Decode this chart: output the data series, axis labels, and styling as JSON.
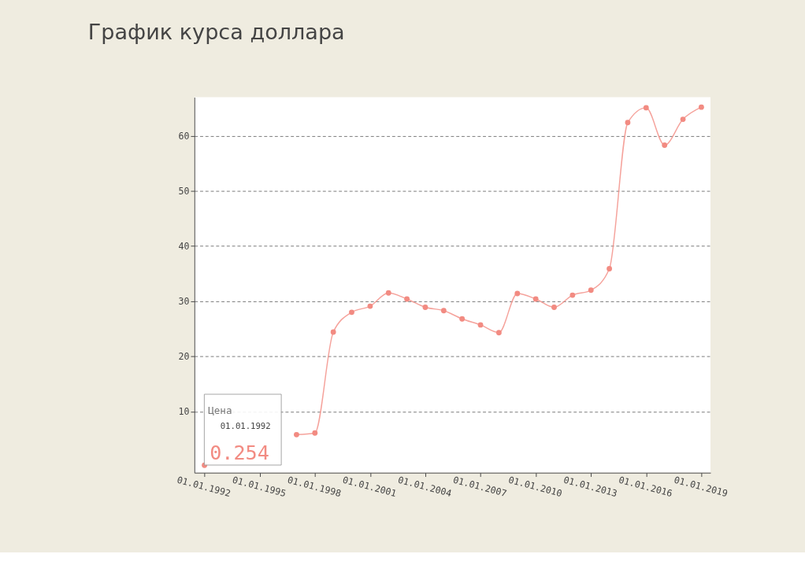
{
  "chart_data": {
    "type": "line",
    "title": "График курса доллара",
    "x": [
      "1992",
      "1993",
      "1994",
      "1995",
      "1996",
      "1997",
      "1998",
      "1999",
      "2000",
      "2001",
      "2002",
      "2003",
      "2004",
      "2005",
      "2006",
      "2007",
      "2008",
      "2009",
      "2010",
      "2011",
      "2012",
      "2013",
      "2014",
      "2015",
      "2016",
      "2017",
      "2018",
      "2019"
    ],
    "series": [
      {
        "color": "#f28b82",
        "values": [
          0.254,
          null,
          null,
          null,
          null,
          5.8,
          6.1,
          24.4,
          28.0,
          29.1,
          31.5,
          30.4,
          28.9,
          28.3,
          26.8,
          25.7,
          24.3,
          31.4,
          30.4,
          28.9,
          31.1,
          32.0,
          35.9,
          62.4,
          65.1,
          58.3,
          63.0,
          65.2
        ]
      }
    ],
    "xlim": [
      "1991-06-15",
      "2019-07-01"
    ],
    "xticks": [
      {
        "value": "1992-01-01",
        "label": "01.01.1992"
      },
      {
        "value": "1995-01-01",
        "label": "01.01.1995"
      },
      {
        "value": "1998-01-01",
        "label": "01.01.1998"
      },
      {
        "value": "2001-01-01",
        "label": "01.01.2001"
      },
      {
        "value": "2004-01-01",
        "label": "01.01.2004"
      },
      {
        "value": "2007-01-01",
        "label": "01.01.2007"
      },
      {
        "value": "2010-01-01",
        "label": "01.01.2010"
      },
      {
        "value": "2013-01-01",
        "label": "01.01.2013"
      },
      {
        "value": "2016-01-01",
        "label": "01.01.2016"
      },
      {
        "value": "2019-01-01",
        "label": "01.01.2019"
      }
    ],
    "ylim": [
      -1.1,
      67
    ],
    "yticks": [
      10,
      20,
      30,
      40,
      50,
      60
    ],
    "grid": "y",
    "marker": "circle",
    "line_style": "solid",
    "legend": false,
    "annotations": [
      "Цена",
      "01.01.1992",
      "0.254"
    ]
  }
}
